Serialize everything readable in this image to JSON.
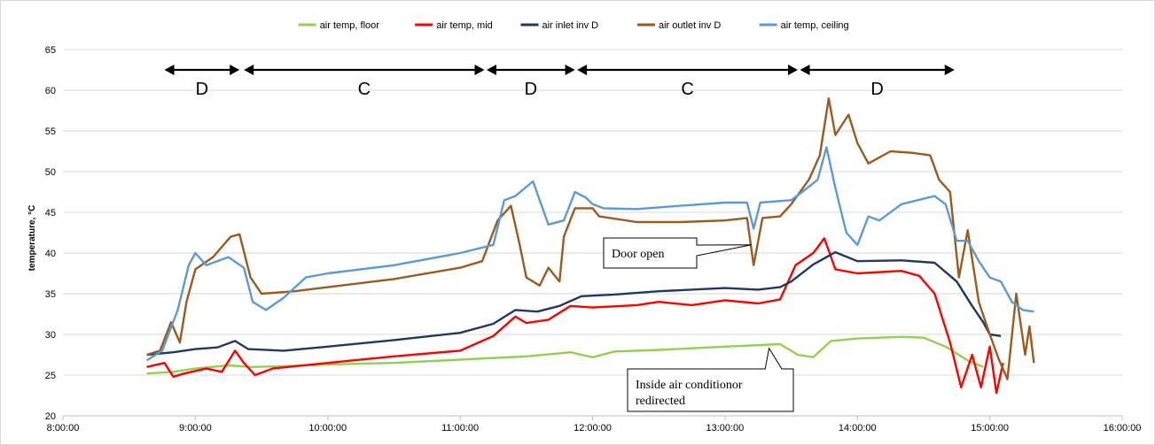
{
  "chart_data": {
    "type": "line",
    "title": "",
    "xlabel": "",
    "ylabel": "temperature, °C",
    "ylim": [
      20,
      65
    ],
    "yticks": [
      20,
      25,
      30,
      35,
      40,
      45,
      50,
      55,
      60,
      65
    ],
    "xlim_hours": [
      8,
      16
    ],
    "xtick_labels": [
      "8:00:00",
      "9:00:00",
      "10:00:00",
      "11:00:00",
      "12:00:00",
      "13:00:00",
      "14:00:00",
      "15:00:00",
      "16:00:00"
    ],
    "grid": "horizontal",
    "legend_position": "top",
    "series": [
      {
        "name": "air temp, floor",
        "color": "#92d050",
        "points": [
          [
            "8:38",
            25.2
          ],
          [
            "8:50",
            25.4
          ],
          [
            "9:00",
            25.8
          ],
          [
            "9:15",
            26.2
          ],
          [
            "9:25",
            26.0
          ],
          [
            "9:40",
            26.1
          ],
          [
            "10:00",
            26.3
          ],
          [
            "10:30",
            26.5
          ],
          [
            "11:00",
            26.9
          ],
          [
            "11:30",
            27.3
          ],
          [
            "11:50",
            27.8
          ],
          [
            "12:00",
            27.2
          ],
          [
            "12:10",
            27.9
          ],
          [
            "12:30",
            28.1
          ],
          [
            "13:00",
            28.5
          ],
          [
            "13:25",
            28.8
          ],
          [
            "13:33",
            27.5
          ],
          [
            "13:40",
            27.2
          ],
          [
            "13:48",
            29.2
          ],
          [
            "14:00",
            29.5
          ],
          [
            "14:20",
            29.7
          ],
          [
            "14:30",
            29.6
          ],
          [
            "14:40",
            28.5
          ],
          [
            "14:50",
            26.8
          ],
          [
            "14:57",
            26.0
          ]
        ]
      },
      {
        "name": "air temp, mid",
        "color": "#ff0000",
        "points": [
          [
            "8:38",
            26.0
          ],
          [
            "8:46",
            26.5
          ],
          [
            "8:50",
            24.8
          ],
          [
            "8:55",
            25.2
          ],
          [
            "9:05",
            25.8
          ],
          [
            "9:12",
            25.4
          ],
          [
            "9:18",
            28.0
          ],
          [
            "9:22",
            26.5
          ],
          [
            "9:27",
            25.0
          ],
          [
            "9:35",
            25.8
          ],
          [
            "10:00",
            26.5
          ],
          [
            "10:30",
            27.3
          ],
          [
            "11:00",
            28.0
          ],
          [
            "11:15",
            29.8
          ],
          [
            "11:25",
            32.2
          ],
          [
            "11:30",
            31.4
          ],
          [
            "11:40",
            31.8
          ],
          [
            "11:50",
            33.5
          ],
          [
            "12:00",
            33.3
          ],
          [
            "12:20",
            33.6
          ],
          [
            "12:30",
            34.0
          ],
          [
            "12:45",
            33.6
          ],
          [
            "13:00",
            34.2
          ],
          [
            "13:15",
            33.8
          ],
          [
            "13:25",
            34.3
          ],
          [
            "13:32",
            38.5
          ],
          [
            "13:40",
            40.0
          ],
          [
            "13:45",
            41.8
          ],
          [
            "13:50",
            38.0
          ],
          [
            "14:00",
            37.5
          ],
          [
            "14:20",
            37.8
          ],
          [
            "14:28",
            37.2
          ],
          [
            "14:35",
            35.0
          ],
          [
            "14:42",
            29.0
          ],
          [
            "14:47",
            23.5
          ],
          [
            "14:52",
            27.5
          ],
          [
            "14:56",
            23.5
          ],
          [
            "15:00",
            28.5
          ],
          [
            "15:03",
            22.8
          ],
          [
            "15:06",
            26.5
          ]
        ]
      },
      {
        "name": "air inlet inv D",
        "color": "#1f3864",
        "points": [
          [
            "8:38",
            27.5
          ],
          [
            "8:50",
            27.8
          ],
          [
            "9:00",
            28.2
          ],
          [
            "9:10",
            28.4
          ],
          [
            "9:18",
            29.2
          ],
          [
            "9:24",
            28.2
          ],
          [
            "9:40",
            28.0
          ],
          [
            "10:00",
            28.5
          ],
          [
            "10:30",
            29.3
          ],
          [
            "11:00",
            30.2
          ],
          [
            "11:15",
            31.3
          ],
          [
            "11:25",
            33.0
          ],
          [
            "11:35",
            32.8
          ],
          [
            "11:45",
            33.5
          ],
          [
            "11:55",
            34.7
          ],
          [
            "12:10",
            34.9
          ],
          [
            "12:30",
            35.3
          ],
          [
            "13:00",
            35.7
          ],
          [
            "13:15",
            35.5
          ],
          [
            "13:25",
            35.8
          ],
          [
            "13:30",
            36.5
          ],
          [
            "13:40",
            38.6
          ],
          [
            "13:50",
            40.1
          ],
          [
            "14:00",
            39.0
          ],
          [
            "14:20",
            39.1
          ],
          [
            "14:35",
            38.8
          ],
          [
            "14:45",
            36.5
          ],
          [
            "14:52",
            33.5
          ],
          [
            "14:57",
            31.5
          ],
          [
            "15:00",
            30.0
          ],
          [
            "15:05",
            29.8
          ]
        ]
      },
      {
        "name": "air outlet inv D",
        "color": "#9c5a1e",
        "points": [
          [
            "8:38",
            27.5
          ],
          [
            "8:44",
            28.0
          ],
          [
            "8:49",
            31.5
          ],
          [
            "8:53",
            29.0
          ],
          [
            "8:56",
            34.0
          ],
          [
            "9:00",
            38.0
          ],
          [
            "9:08",
            39.5
          ],
          [
            "9:16",
            42.0
          ],
          [
            "9:20",
            42.3
          ],
          [
            "9:25",
            37.0
          ],
          [
            "9:30",
            35.0
          ],
          [
            "9:45",
            35.3
          ],
          [
            "10:00",
            35.8
          ],
          [
            "10:30",
            36.8
          ],
          [
            "11:00",
            38.2
          ],
          [
            "11:10",
            39.0
          ],
          [
            "11:17",
            44.0
          ],
          [
            "11:23",
            45.8
          ],
          [
            "11:27",
            41.0
          ],
          [
            "11:30",
            37.0
          ],
          [
            "11:36",
            36.0
          ],
          [
            "11:40",
            38.2
          ],
          [
            "11:45",
            36.5
          ],
          [
            "11:47",
            42.0
          ],
          [
            "11:52",
            45.5
          ],
          [
            "12:00",
            45.5
          ],
          [
            "12:03",
            44.5
          ],
          [
            "12:20",
            43.8
          ],
          [
            "12:40",
            43.8
          ],
          [
            "13:00",
            44.0
          ],
          [
            "13:10",
            44.3
          ],
          [
            "13:13",
            38.5
          ],
          [
            "13:17",
            44.3
          ],
          [
            "13:25",
            44.5
          ],
          [
            "13:30",
            46.0
          ],
          [
            "13:38",
            49.0
          ],
          [
            "13:43",
            52.0
          ],
          [
            "13:47",
            59.0
          ],
          [
            "13:50",
            54.5
          ],
          [
            "13:56",
            57.0
          ],
          [
            "14:00",
            53.5
          ],
          [
            "14:05",
            51.0
          ],
          [
            "14:15",
            52.5
          ],
          [
            "14:25",
            52.3
          ],
          [
            "14:33",
            52.0
          ],
          [
            "14:37",
            49.0
          ],
          [
            "14:42",
            47.5
          ],
          [
            "14:46",
            37.0
          ],
          [
            "14:50",
            42.8
          ],
          [
            "14:55",
            34.0
          ],
          [
            "15:00",
            30.0
          ],
          [
            "15:04",
            27.0
          ],
          [
            "15:08",
            24.5
          ],
          [
            "15:12",
            35.0
          ],
          [
            "15:16",
            27.5
          ],
          [
            "15:18",
            31.0
          ],
          [
            "15:20",
            26.5
          ]
        ]
      },
      {
        "name": "air temp, ceiling",
        "color": "#5b9bd5",
        "points": [
          [
            "8:38",
            26.8
          ],
          [
            "8:45",
            28.0
          ],
          [
            "8:52",
            33.0
          ],
          [
            "8:57",
            38.5
          ],
          [
            "9:00",
            40.0
          ],
          [
            "9:05",
            38.5
          ],
          [
            "9:15",
            39.5
          ],
          [
            "9:22",
            38.2
          ],
          [
            "9:26",
            34.0
          ],
          [
            "9:32",
            33.0
          ],
          [
            "9:40",
            34.5
          ],
          [
            "9:50",
            37.0
          ],
          [
            "10:00",
            37.5
          ],
          [
            "10:30",
            38.5
          ],
          [
            "11:00",
            40.0
          ],
          [
            "11:15",
            41.0
          ],
          [
            "11:20",
            46.5
          ],
          [
            "11:25",
            47.0
          ],
          [
            "11:33",
            48.8
          ],
          [
            "11:36",
            46.5
          ],
          [
            "11:40",
            43.5
          ],
          [
            "11:47",
            44.0
          ],
          [
            "11:52",
            47.5
          ],
          [
            "11:57",
            46.8
          ],
          [
            "12:00",
            46.0
          ],
          [
            "12:05",
            45.5
          ],
          [
            "12:20",
            45.4
          ],
          [
            "12:40",
            45.8
          ],
          [
            "13:00",
            46.2
          ],
          [
            "13:10",
            46.2
          ],
          [
            "13:13",
            43.0
          ],
          [
            "13:16",
            46.2
          ],
          [
            "13:30",
            46.5
          ],
          [
            "13:35",
            47.5
          ],
          [
            "13:42",
            49.0
          ],
          [
            "13:46",
            53.0
          ],
          [
            "13:50",
            48.0
          ],
          [
            "13:55",
            42.5
          ],
          [
            "14:00",
            41.0
          ],
          [
            "14:05",
            44.5
          ],
          [
            "14:10",
            44.0
          ],
          [
            "14:20",
            46.0
          ],
          [
            "14:35",
            47.0
          ],
          [
            "14:40",
            46.0
          ],
          [
            "14:45",
            41.5
          ],
          [
            "14:50",
            41.5
          ],
          [
            "14:55",
            39.0
          ],
          [
            "15:00",
            37.0
          ],
          [
            "15:05",
            36.5
          ],
          [
            "15:10",
            34.0
          ],
          [
            "15:15",
            33.0
          ],
          [
            "15:20",
            32.8
          ]
        ]
      }
    ],
    "annotations": {
      "phases": [
        {
          "label": "D",
          "start": "8:46",
          "end": "9:20"
        },
        {
          "label": "C",
          "start": "9:22",
          "end": "11:11"
        },
        {
          "label": "D",
          "start": "11:12",
          "end": "11:52"
        },
        {
          "label": "C",
          "start": "11:53",
          "end": "13:33"
        },
        {
          "label": "D",
          "start": "13:34",
          "end": "14:44"
        }
      ],
      "callouts": [
        {
          "text_lines": [
            "Door open"
          ],
          "target_time": "13:12",
          "target_value": 41.0
        },
        {
          "text_lines": [
            "Inside air conditionor",
            "redirected"
          ],
          "target_time": "13:20",
          "target_value": 28.3
        }
      ]
    }
  }
}
